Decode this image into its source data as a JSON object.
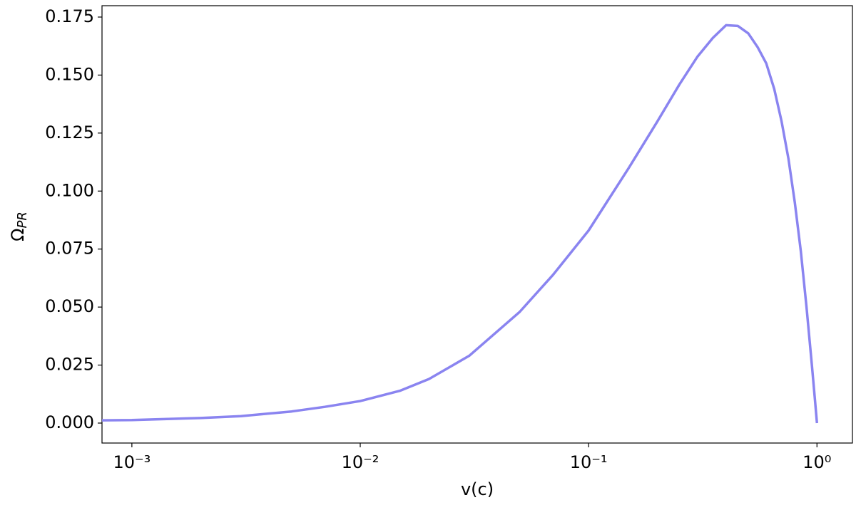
{
  "chart_data": {
    "type": "line",
    "x_label": "v(c)",
    "y_label": "Ω",
    "y_label_subscript": "PR",
    "x_scale": "log",
    "x": [
      0.00074,
      0.001,
      0.002,
      0.003,
      0.005,
      0.007,
      0.01,
      0.015,
      0.02,
      0.03,
      0.05,
      0.07,
      0.1,
      0.15,
      0.2,
      0.25,
      0.3,
      0.35,
      0.4,
      0.45,
      0.5,
      0.55,
      0.6,
      0.65,
      0.7,
      0.75,
      0.8,
      0.85,
      0.9,
      0.95,
      0.98,
      1.0
    ],
    "series": [
      {
        "name": "ΩPR",
        "color": "#8a84f0",
        "values": [
          0.0012,
          0.0013,
          0.0022,
          0.003,
          0.005,
          0.007,
          0.0095,
          0.014,
          0.019,
          0.029,
          0.048,
          0.064,
          0.083,
          0.11,
          0.13,
          0.146,
          0.158,
          0.166,
          0.1715,
          0.1712,
          0.168,
          0.162,
          0.155,
          0.144,
          0.13,
          0.114,
          0.095,
          0.074,
          0.05,
          0.025,
          0.01,
          0.0
        ]
      }
    ],
    "xlim": [
      0.00074,
      1.43
    ],
    "ylim": [
      -0.0086,
      0.1799
    ],
    "xticks": [
      {
        "value": 0.001,
        "label": "10⁻³"
      },
      {
        "value": 0.01,
        "label": "10⁻²"
      },
      {
        "value": 0.1,
        "label": "10⁻¹"
      },
      {
        "value": 1,
        "label": "10⁰"
      }
    ],
    "yticks": [
      {
        "value": 0,
        "label": "0.000"
      },
      {
        "value": 0.025,
        "label": "0.025"
      },
      {
        "value": 0.05,
        "label": "0.050"
      },
      {
        "value": 0.075,
        "label": "0.075"
      },
      {
        "value": 0.1,
        "label": "0.100"
      },
      {
        "value": 0.125,
        "label": "0.125"
      },
      {
        "value": 0.15,
        "label": "0.150"
      },
      {
        "value": 0.175,
        "label": "0.175"
      }
    ],
    "grid": false
  }
}
